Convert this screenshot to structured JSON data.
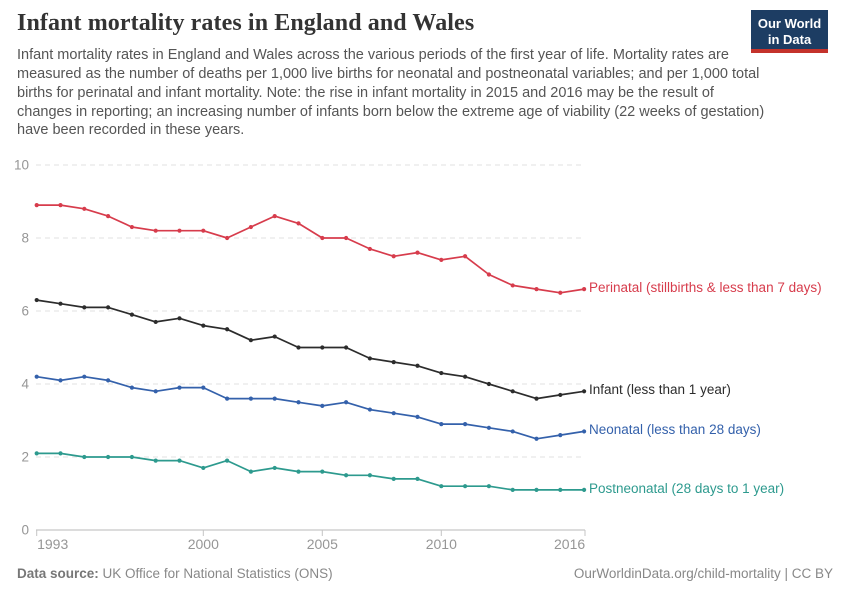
{
  "header": {
    "title": "Infant mortality rates in England and Wales",
    "subtitle": "Infant mortality rates in England and Wales across the various periods of the first year of life. Mortality rates are measured as the number of deaths per 1,000 live births for neonatal and postneonatal variables; and per 1,000 total births for perinatal and infant mortality. Note: the rise in infant mortality in 2015 and 2016 may be the result of changes in reporting; an increasing number of infants born below the extreme age of viability (22 weeks of gestation) have been recorded in these years.",
    "logo": {
      "line1": "Our World",
      "line2": "in Data",
      "bg_color": "#1d3d63",
      "stripe_color": "#c4322b"
    }
  },
  "footer": {
    "datasource_label": "Data source:",
    "datasource_value": "UK Office for National Statistics (ONS)",
    "attribution": "OurWorldinData.org/child-mortality | CC BY"
  },
  "chart_data": {
    "type": "line",
    "title": "Infant mortality rates in England and Wales",
    "xlabel": "",
    "ylabel": "",
    "ylim": [
      0,
      10
    ],
    "yticks": [
      0,
      2,
      4,
      6,
      8,
      10
    ],
    "xticks": [
      1993,
      2000,
      2005,
      2010,
      2016
    ],
    "grid": "horizontal-dashed",
    "legend_position": "right-of-line-ends",
    "x": [
      1993,
      1994,
      1995,
      1996,
      1997,
      1998,
      1999,
      2000,
      2001,
      2002,
      2003,
      2004,
      2005,
      2006,
      2007,
      2008,
      2009,
      2010,
      2011,
      2012,
      2013,
      2014,
      2015,
      2016
    ],
    "series": [
      {
        "name": "Perinatal (stillbirths & less than 7 days)",
        "color": "#D73C4C",
        "values": [
          8.9,
          8.9,
          8.8,
          8.6,
          8.3,
          8.2,
          8.2,
          8.2,
          8.0,
          8.3,
          8.6,
          8.4,
          8.0,
          8.0,
          7.7,
          7.5,
          7.6,
          7.4,
          7.5,
          7.0,
          6.7,
          6.6,
          6.5,
          6.6
        ]
      },
      {
        "name": "Infant (less than 1 year)",
        "color": "#2c2c2c",
        "values": [
          6.3,
          6.2,
          6.1,
          6.1,
          5.9,
          5.7,
          5.8,
          5.6,
          5.5,
          5.2,
          5.3,
          5.0,
          5.0,
          5.0,
          4.7,
          4.6,
          4.5,
          4.3,
          4.2,
          4.0,
          3.8,
          3.6,
          3.7,
          3.8
        ]
      },
      {
        "name": "Neonatal (less than 28 days)",
        "color": "#3461AB",
        "values": [
          4.2,
          4.1,
          4.2,
          4.1,
          3.9,
          3.8,
          3.9,
          3.9,
          3.6,
          3.6,
          3.6,
          3.5,
          3.4,
          3.5,
          3.3,
          3.2,
          3.1,
          2.9,
          2.9,
          2.8,
          2.7,
          2.5,
          2.6,
          2.7
        ]
      },
      {
        "name": "Postneonatal (28 days to 1 year)",
        "color": "#2D9A8E",
        "values": [
          2.1,
          2.1,
          2.0,
          2.0,
          2.0,
          1.9,
          1.9,
          1.7,
          1.9,
          1.6,
          1.7,
          1.6,
          1.6,
          1.5,
          1.5,
          1.4,
          1.4,
          1.2,
          1.2,
          1.2,
          1.1,
          1.1,
          1.1,
          1.1
        ]
      }
    ]
  }
}
